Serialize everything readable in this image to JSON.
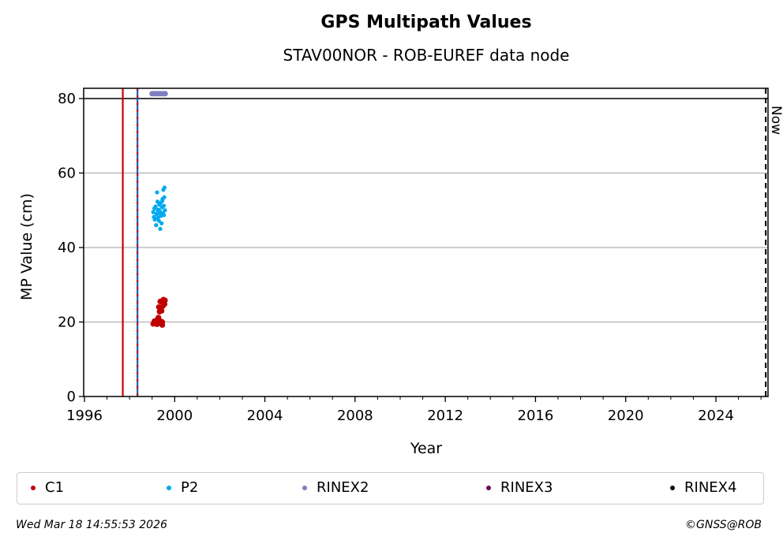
{
  "chart_data": {
    "type": "scatter",
    "title": "GPS Multipath Values",
    "subtitle": "STAV00NOR - ROB-EUREF data node",
    "xlabel": "Year",
    "ylabel": "MP Value (cm)",
    "xlim": [
      1996,
      2026.9
    ],
    "ylim": [
      0,
      82.7
    ],
    "xticks": [
      "1996",
      "2000",
      "2004",
      "2008",
      "2012",
      "2016",
      "2020",
      "2024"
    ],
    "yticks": [
      "0",
      "20",
      "40",
      "60",
      "80"
    ],
    "grid": "horizontal",
    "hline_at": 80,
    "vlines": [
      {
        "x": 1997.7,
        "color": "#cc0000",
        "style": "solid"
      },
      {
        "x": 1998.35,
        "color": "#1f5fbf",
        "style": "dashed-red"
      },
      {
        "x": 2026.21,
        "color": "#000000",
        "style": "dashed",
        "label": "Now"
      }
    ],
    "series": [
      {
        "name": "C1",
        "color": "#c00000",
        "points": [
          [
            1999.05,
            19.5
          ],
          [
            1999.1,
            20.2
          ],
          [
            1999.15,
            19.8
          ],
          [
            1999.2,
            20.5
          ],
          [
            1999.22,
            19.4
          ],
          [
            1999.28,
            21.2
          ],
          [
            1999.3,
            24.0
          ],
          [
            1999.33,
            22.8
          ],
          [
            1999.36,
            25.5
          ],
          [
            1999.4,
            19.9
          ],
          [
            1999.42,
            23.0
          ],
          [
            1999.45,
            19.2
          ],
          [
            1999.48,
            24.3
          ],
          [
            1999.5,
            26.0
          ],
          [
            1999.52,
            25.2
          ],
          [
            1999.55,
            24.8
          ],
          [
            1999.57,
            25.8
          ],
          [
            1999.35,
            20.3
          ],
          [
            1999.25,
            19.6
          ],
          [
            1999.45,
            20.0
          ]
        ]
      },
      {
        "name": "P2",
        "color": "#00aaee",
        "points": [
          [
            1999.05,
            49.5
          ],
          [
            1999.08,
            48.2
          ],
          [
            1999.1,
            50.5
          ],
          [
            1999.12,
            47.5
          ],
          [
            1999.15,
            51.0
          ],
          [
            1999.18,
            46.0
          ],
          [
            1999.2,
            49.0
          ],
          [
            1999.22,
            54.8
          ],
          [
            1999.24,
            52.3
          ],
          [
            1999.26,
            48.0
          ],
          [
            1999.28,
            50.2
          ],
          [
            1999.3,
            47.2
          ],
          [
            1999.32,
            51.5
          ],
          [
            1999.34,
            49.8
          ],
          [
            1999.36,
            45.0
          ],
          [
            1999.38,
            52.0
          ],
          [
            1999.4,
            48.5
          ],
          [
            1999.42,
            46.5
          ],
          [
            1999.44,
            50.8
          ],
          [
            1999.46,
            53.0
          ],
          [
            1999.48,
            49.2
          ],
          [
            1999.5,
            55.5
          ],
          [
            1999.52,
            51.2
          ],
          [
            1999.54,
            53.5
          ],
          [
            1999.55,
            56.1
          ],
          [
            1999.57,
            50.0
          ],
          [
            1999.35,
            49.0
          ],
          [
            1999.25,
            50.0
          ],
          [
            1999.45,
            52.5
          ],
          [
            1999.52,
            48.7
          ]
        ]
      },
      {
        "name": "RINEX2",
        "color": "#7f7fbf",
        "points": [
          [
            1999.0,
            81.3
          ],
          [
            1999.1,
            81.3
          ],
          [
            1999.2,
            81.3
          ],
          [
            1999.3,
            81.3
          ],
          [
            1999.4,
            81.3
          ],
          [
            1999.5,
            81.3
          ],
          [
            1999.58,
            81.3
          ]
        ]
      },
      {
        "name": "RINEX3",
        "color": "#6a0a5e",
        "points": []
      },
      {
        "name": "RINEX4",
        "color": "#1a0010",
        "points": []
      }
    ],
    "legend_position": "bottom"
  },
  "footer": {
    "timestamp": "Wed Mar 18 14:55:53 2026",
    "credit": "©GNSS@ROB"
  }
}
